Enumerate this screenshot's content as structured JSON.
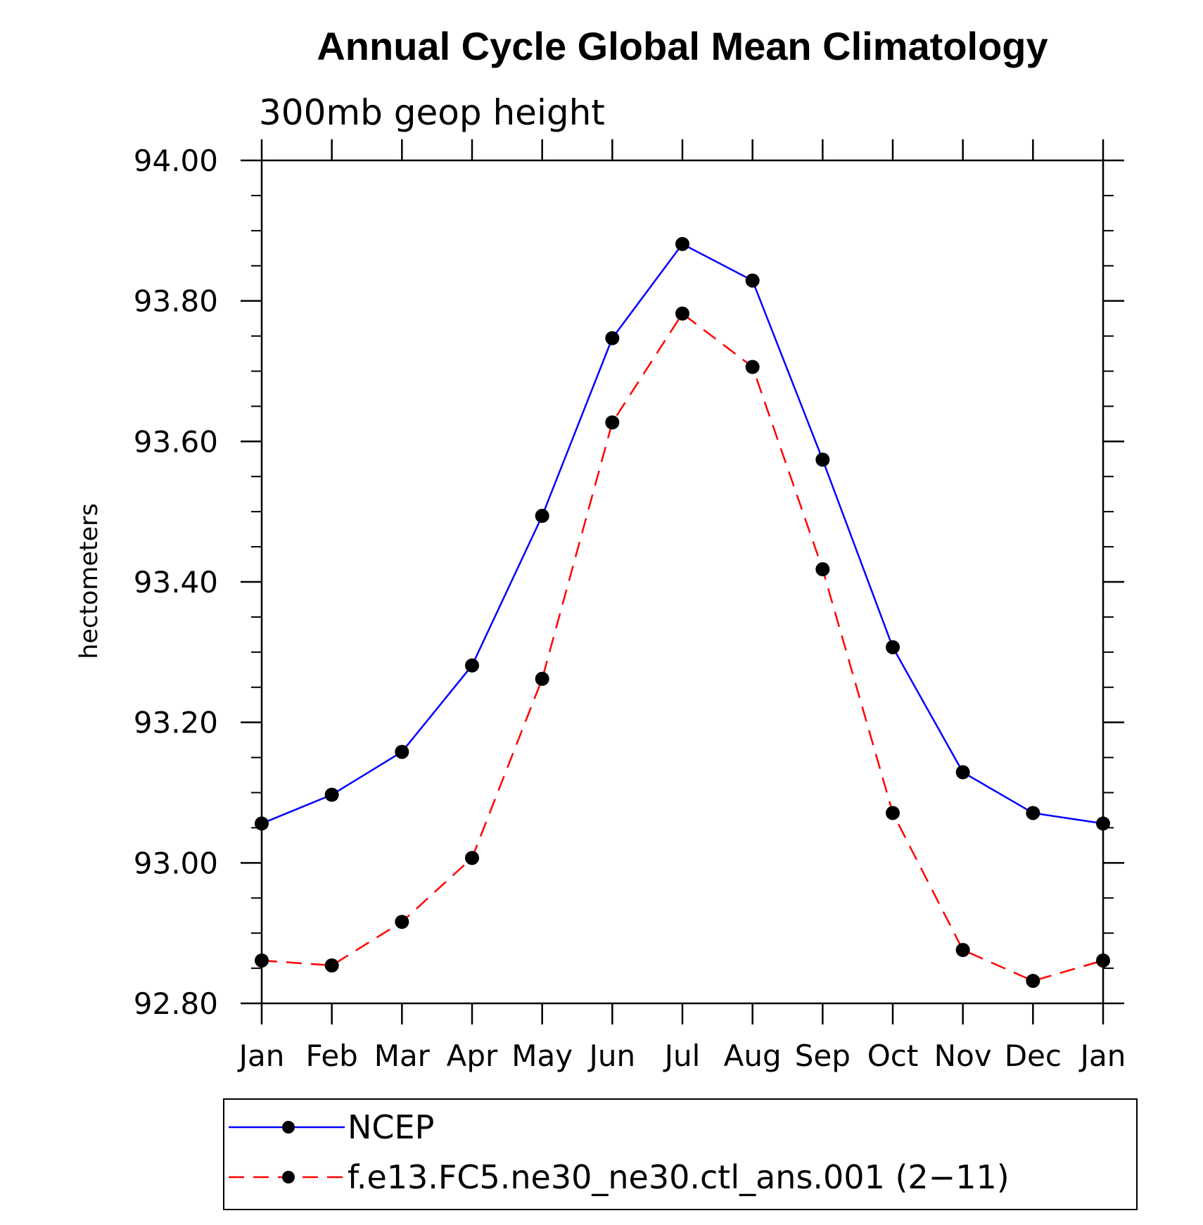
{
  "chart_data": {
    "type": "line",
    "title": "Annual Cycle Global Mean Climatology",
    "subtitle": "300mb geop height",
    "ylabel": "hectometers",
    "xlabel": "",
    "categories": [
      "Jan",
      "Feb",
      "Mar",
      "Apr",
      "May",
      "Jun",
      "Jul",
      "Aug",
      "Sep",
      "Oct",
      "Nov",
      "Dec",
      "Jan"
    ],
    "ylim": [
      92.8,
      94.0
    ],
    "yticks": [
      "92.80",
      "93.00",
      "93.20",
      "93.40",
      "93.60",
      "93.80",
      "94.00"
    ],
    "grid": false,
    "legend_position": "bottom",
    "series": [
      {
        "name": "NCEP",
        "color": "#0000ff",
        "line_style": "solid",
        "marker": "filled-circle",
        "values": [
          93.056,
          93.097,
          93.158,
          93.281,
          93.494,
          93.747,
          93.881,
          93.829,
          93.574,
          93.307,
          93.129,
          93.071,
          93.056
        ]
      },
      {
        "name": "f.e13.FC5.ne30_ne30.ctl_ans.001 (2−11)",
        "color": "#ff0000",
        "line_style": "dashed",
        "marker": "filled-circle",
        "values": [
          92.861,
          92.854,
          92.916,
          93.007,
          93.262,
          93.627,
          93.782,
          93.706,
          93.418,
          93.071,
          92.876,
          92.832,
          92.861
        ]
      }
    ]
  }
}
